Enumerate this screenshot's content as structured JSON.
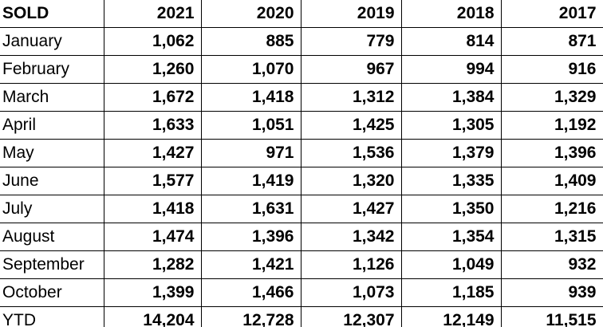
{
  "table": {
    "header": {
      "label": "SOLD",
      "years": [
        "2021",
        "2020",
        "2019",
        "2018",
        "2017"
      ]
    },
    "rows": [
      {
        "month": "January",
        "values": [
          "1,062",
          "885",
          "779",
          "814",
          "871"
        ]
      },
      {
        "month": "February",
        "values": [
          "1,260",
          "1,070",
          "967",
          "994",
          "916"
        ]
      },
      {
        "month": "March",
        "values": [
          "1,672",
          "1,418",
          "1,312",
          "1,384",
          "1,329"
        ]
      },
      {
        "month": "April",
        "values": [
          "1,633",
          "1,051",
          "1,425",
          "1,305",
          "1,192"
        ]
      },
      {
        "month": "May",
        "values": [
          "1,427",
          "971",
          "1,536",
          "1,379",
          "1,396"
        ]
      },
      {
        "month": "June",
        "values": [
          "1,577",
          "1,419",
          "1,320",
          "1,335",
          "1,409"
        ]
      },
      {
        "month": "July",
        "values": [
          "1,418",
          "1,631",
          "1,427",
          "1,350",
          "1,216"
        ]
      },
      {
        "month": "August",
        "values": [
          "1,474",
          "1,396",
          "1,342",
          "1,354",
          "1,315"
        ]
      },
      {
        "month": "September",
        "values": [
          "1,282",
          "1,421",
          "1,126",
          "1,049",
          "932"
        ]
      },
      {
        "month": "October",
        "values": [
          "1,399",
          "1,466",
          "1,073",
          "1,185",
          "939"
        ]
      },
      {
        "month": "YTD",
        "values": [
          "14,204",
          "12,728",
          "12,307",
          "12,149",
          "11,515"
        ]
      }
    ]
  },
  "colors": {
    "text": "#000000",
    "border": "#000000",
    "background": "#ffffff"
  },
  "chart_data": {
    "type": "table",
    "title": "SOLD",
    "columns": [
      "SOLD",
      "2021",
      "2020",
      "2019",
      "2018",
      "2017"
    ],
    "rows": [
      [
        "January",
        1062,
        885,
        779,
        814,
        871
      ],
      [
        "February",
        1260,
        1070,
        967,
        994,
        916
      ],
      [
        "March",
        1672,
        1418,
        1312,
        1384,
        1329
      ],
      [
        "April",
        1633,
        1051,
        1425,
        1305,
        1192
      ],
      [
        "May",
        1427,
        971,
        1536,
        1379,
        1396
      ],
      [
        "June",
        1577,
        1419,
        1320,
        1335,
        1409
      ],
      [
        "July",
        1418,
        1631,
        1427,
        1350,
        1216
      ],
      [
        "August",
        1474,
        1396,
        1342,
        1354,
        1315
      ],
      [
        "September",
        1282,
        1421,
        1126,
        1049,
        932
      ],
      [
        "October",
        1399,
        1466,
        1073,
        1185,
        939
      ],
      [
        "YTD",
        14204,
        12728,
        12307,
        12149,
        11515
      ]
    ]
  }
}
